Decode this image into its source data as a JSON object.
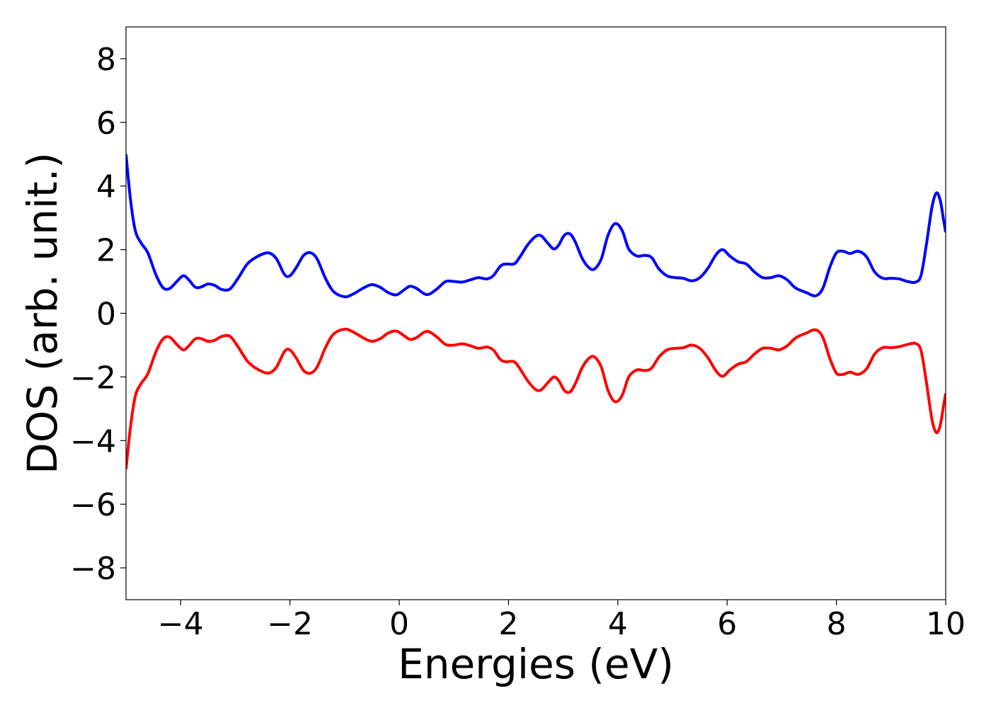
{
  "chart_data": {
    "type": "line",
    "title": "",
    "xlabel": "Energies (eV)",
    "ylabel": "DOS (arb. unit.)",
    "xlim": [
      -5,
      10
    ],
    "ylim": [
      -9,
      9
    ],
    "xticks": [
      -4,
      -2,
      0,
      2,
      4,
      6,
      8,
      10
    ],
    "yticks": [
      -8,
      -6,
      -4,
      -2,
      0,
      2,
      4,
      6,
      8
    ],
    "xtick_labels": [
      "−4",
      "−2",
      "0",
      "2",
      "4",
      "6",
      "8",
      "10"
    ],
    "ytick_labels": [
      "−8",
      "−6",
      "−4",
      "−2",
      "0",
      "2",
      "4",
      "6",
      "8"
    ],
    "grid": false,
    "legend": "none",
    "series": [
      {
        "color": "#0000ff",
        "points": [
          [
            -5.0,
            5.0
          ],
          [
            -4.92,
            3.6
          ],
          [
            -4.83,
            2.6
          ],
          [
            -4.72,
            2.2
          ],
          [
            -4.6,
            1.9
          ],
          [
            -4.45,
            1.2
          ],
          [
            -4.32,
            0.8
          ],
          [
            -4.2,
            0.78
          ],
          [
            -4.07,
            1.0
          ],
          [
            -3.95,
            1.18
          ],
          [
            -3.85,
            1.05
          ],
          [
            -3.73,
            0.82
          ],
          [
            -3.62,
            0.83
          ],
          [
            -3.5,
            0.92
          ],
          [
            -3.38,
            0.88
          ],
          [
            -3.25,
            0.75
          ],
          [
            -3.1,
            0.76
          ],
          [
            -2.95,
            1.1
          ],
          [
            -2.78,
            1.55
          ],
          [
            -2.6,
            1.78
          ],
          [
            -2.4,
            1.9
          ],
          [
            -2.25,
            1.72
          ],
          [
            -2.1,
            1.22
          ],
          [
            -2.0,
            1.18
          ],
          [
            -1.88,
            1.45
          ],
          [
            -1.75,
            1.82
          ],
          [
            -1.62,
            1.9
          ],
          [
            -1.5,
            1.7
          ],
          [
            -1.35,
            1.1
          ],
          [
            -1.2,
            0.68
          ],
          [
            -1.0,
            0.52
          ],
          [
            -0.85,
            0.6
          ],
          [
            -0.65,
            0.8
          ],
          [
            -0.5,
            0.9
          ],
          [
            -0.35,
            0.82
          ],
          [
            -0.2,
            0.65
          ],
          [
            -0.05,
            0.58
          ],
          [
            0.1,
            0.75
          ],
          [
            0.2,
            0.85
          ],
          [
            0.32,
            0.78
          ],
          [
            0.45,
            0.62
          ],
          [
            0.55,
            0.6
          ],
          [
            0.7,
            0.78
          ],
          [
            0.85,
            1.0
          ],
          [
            1.0,
            1.0
          ],
          [
            1.15,
            0.98
          ],
          [
            1.3,
            1.05
          ],
          [
            1.45,
            1.12
          ],
          [
            1.6,
            1.08
          ],
          [
            1.72,
            1.18
          ],
          [
            1.85,
            1.48
          ],
          [
            1.95,
            1.55
          ],
          [
            2.1,
            1.55
          ],
          [
            2.2,
            1.75
          ],
          [
            2.35,
            2.15
          ],
          [
            2.5,
            2.42
          ],
          [
            2.6,
            2.43
          ],
          [
            2.72,
            2.2
          ],
          [
            2.83,
            2.02
          ],
          [
            2.92,
            2.15
          ],
          [
            3.02,
            2.45
          ],
          [
            3.12,
            2.5
          ],
          [
            3.22,
            2.25
          ],
          [
            3.35,
            1.72
          ],
          [
            3.48,
            1.42
          ],
          [
            3.58,
            1.4
          ],
          [
            3.7,
            1.72
          ],
          [
            3.82,
            2.45
          ],
          [
            3.95,
            2.82
          ],
          [
            4.08,
            2.6
          ],
          [
            4.2,
            2.02
          ],
          [
            4.35,
            1.8
          ],
          [
            4.5,
            1.82
          ],
          [
            4.62,
            1.75
          ],
          [
            4.75,
            1.4
          ],
          [
            4.9,
            1.18
          ],
          [
            5.05,
            1.12
          ],
          [
            5.2,
            1.1
          ],
          [
            5.35,
            1.02
          ],
          [
            5.5,
            1.12
          ],
          [
            5.65,
            1.42
          ],
          [
            5.8,
            1.85
          ],
          [
            5.92,
            2.0
          ],
          [
            6.05,
            1.8
          ],
          [
            6.2,
            1.62
          ],
          [
            6.35,
            1.55
          ],
          [
            6.5,
            1.3
          ],
          [
            6.65,
            1.12
          ],
          [
            6.8,
            1.12
          ],
          [
            6.95,
            1.18
          ],
          [
            7.1,
            1.05
          ],
          [
            7.25,
            0.8
          ],
          [
            7.45,
            0.65
          ],
          [
            7.62,
            0.55
          ],
          [
            7.75,
            0.78
          ],
          [
            7.88,
            1.45
          ],
          [
            8.0,
            1.9
          ],
          [
            8.12,
            1.95
          ],
          [
            8.25,
            1.88
          ],
          [
            8.4,
            1.95
          ],
          [
            8.55,
            1.78
          ],
          [
            8.7,
            1.3
          ],
          [
            8.85,
            1.1
          ],
          [
            9.0,
            1.1
          ],
          [
            9.15,
            1.08
          ],
          [
            9.3,
            1.0
          ],
          [
            9.45,
            0.98
          ],
          [
            9.55,
            1.2
          ],
          [
            9.65,
            2.2
          ],
          [
            9.75,
            3.35
          ],
          [
            9.83,
            3.78
          ],
          [
            9.9,
            3.55
          ],
          [
            9.96,
            2.95
          ],
          [
            10.0,
            2.55
          ]
        ]
      },
      {
        "color": "#ff0000",
        "points": [
          [
            -5.0,
            -4.9
          ],
          [
            -4.92,
            -3.6
          ],
          [
            -4.83,
            -2.6
          ],
          [
            -4.72,
            -2.2
          ],
          [
            -4.6,
            -1.9
          ],
          [
            -4.45,
            -1.2
          ],
          [
            -4.32,
            -0.8
          ],
          [
            -4.2,
            -0.75
          ],
          [
            -4.07,
            -0.98
          ],
          [
            -3.95,
            -1.15
          ],
          [
            -3.85,
            -1.02
          ],
          [
            -3.73,
            -0.8
          ],
          [
            -3.62,
            -0.8
          ],
          [
            -3.5,
            -0.88
          ],
          [
            -3.38,
            -0.85
          ],
          [
            -3.25,
            -0.73
          ],
          [
            -3.1,
            -0.72
          ],
          [
            -2.95,
            -1.05
          ],
          [
            -2.78,
            -1.5
          ],
          [
            -2.6,
            -1.75
          ],
          [
            -2.4,
            -1.88
          ],
          [
            -2.25,
            -1.7
          ],
          [
            -2.1,
            -1.2
          ],
          [
            -2.0,
            -1.15
          ],
          [
            -1.88,
            -1.42
          ],
          [
            -1.75,
            -1.8
          ],
          [
            -1.62,
            -1.88
          ],
          [
            -1.5,
            -1.68
          ],
          [
            -1.35,
            -1.08
          ],
          [
            -1.2,
            -0.65
          ],
          [
            -1.0,
            -0.5
          ],
          [
            -0.85,
            -0.58
          ],
          [
            -0.65,
            -0.78
          ],
          [
            -0.5,
            -0.88
          ],
          [
            -0.35,
            -0.8
          ],
          [
            -0.2,
            -0.62
          ],
          [
            -0.05,
            -0.56
          ],
          [
            0.1,
            -0.72
          ],
          [
            0.2,
            -0.82
          ],
          [
            0.32,
            -0.76
          ],
          [
            0.45,
            -0.6
          ],
          [
            0.55,
            -0.58
          ],
          [
            0.7,
            -0.76
          ],
          [
            0.85,
            -0.98
          ],
          [
            1.0,
            -1.0
          ],
          [
            1.15,
            -0.96
          ],
          [
            1.3,
            -1.02
          ],
          [
            1.45,
            -1.1
          ],
          [
            1.6,
            -1.06
          ],
          [
            1.72,
            -1.15
          ],
          [
            1.85,
            -1.45
          ],
          [
            1.95,
            -1.52
          ],
          [
            2.1,
            -1.52
          ],
          [
            2.2,
            -1.72
          ],
          [
            2.35,
            -2.12
          ],
          [
            2.5,
            -2.4
          ],
          [
            2.6,
            -2.4
          ],
          [
            2.72,
            -2.18
          ],
          [
            2.83,
            -2.0
          ],
          [
            2.92,
            -2.12
          ],
          [
            3.02,
            -2.42
          ],
          [
            3.12,
            -2.48
          ],
          [
            3.22,
            -2.22
          ],
          [
            3.35,
            -1.7
          ],
          [
            3.48,
            -1.4
          ],
          [
            3.58,
            -1.38
          ],
          [
            3.7,
            -1.7
          ],
          [
            3.82,
            -2.42
          ],
          [
            3.95,
            -2.78
          ],
          [
            4.08,
            -2.58
          ],
          [
            4.2,
            -2.0
          ],
          [
            4.35,
            -1.78
          ],
          [
            4.5,
            -1.8
          ],
          [
            4.62,
            -1.72
          ],
          [
            4.75,
            -1.38
          ],
          [
            4.9,
            -1.15
          ],
          [
            5.05,
            -1.1
          ],
          [
            5.2,
            -1.08
          ],
          [
            5.35,
            -1.0
          ],
          [
            5.5,
            -1.1
          ],
          [
            5.65,
            -1.4
          ],
          [
            5.8,
            -1.82
          ],
          [
            5.92,
            -1.98
          ],
          [
            6.05,
            -1.78
          ],
          [
            6.2,
            -1.6
          ],
          [
            6.35,
            -1.52
          ],
          [
            6.5,
            -1.28
          ],
          [
            6.65,
            -1.1
          ],
          [
            6.8,
            -1.1
          ],
          [
            6.95,
            -1.15
          ],
          [
            7.1,
            -1.02
          ],
          [
            7.25,
            -0.78
          ],
          [
            7.45,
            -0.62
          ],
          [
            7.62,
            -0.52
          ],
          [
            7.75,
            -0.75
          ],
          [
            7.88,
            -1.42
          ],
          [
            8.0,
            -1.88
          ],
          [
            8.12,
            -1.92
          ],
          [
            8.25,
            -1.85
          ],
          [
            8.4,
            -1.92
          ],
          [
            8.55,
            -1.75
          ],
          [
            8.7,
            -1.28
          ],
          [
            8.85,
            -1.08
          ],
          [
            9.0,
            -1.08
          ],
          [
            9.15,
            -1.05
          ],
          [
            9.3,
            -0.98
          ],
          [
            9.45,
            -0.95
          ],
          [
            9.55,
            -1.18
          ],
          [
            9.65,
            -2.2
          ],
          [
            9.75,
            -3.35
          ],
          [
            9.83,
            -3.75
          ],
          [
            9.9,
            -3.52
          ],
          [
            9.96,
            -2.92
          ],
          [
            10.0,
            -2.52
          ]
        ]
      }
    ]
  }
}
